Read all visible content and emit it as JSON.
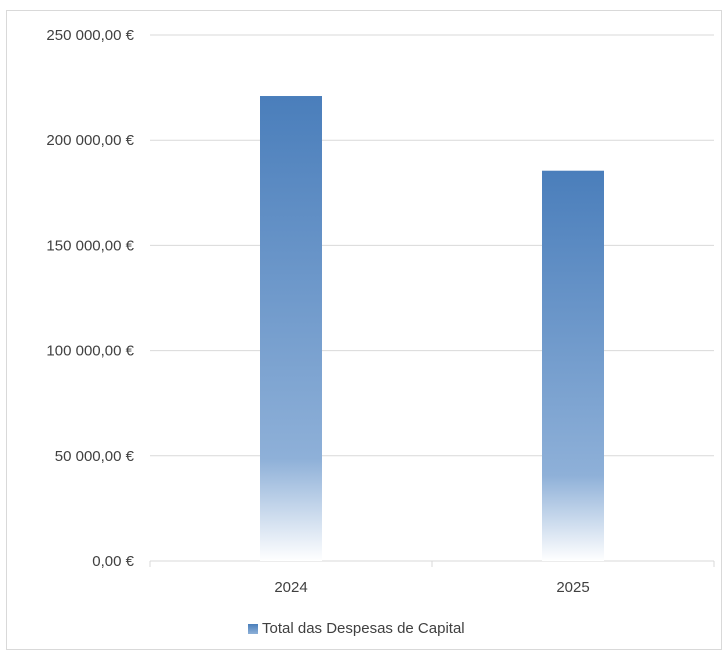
{
  "chart_data": {
    "type": "bar",
    "categories": [
      "2024",
      "2025"
    ],
    "series": [
      {
        "name": "Total das Despesas de Capital",
        "values": [
          221000,
          185500
        ]
      }
    ],
    "ylim": [
      0,
      250000
    ],
    "y_ticks": [
      0,
      50000,
      100000,
      150000,
      200000,
      250000
    ],
    "y_tick_labels": [
      "0,00 €",
      "50 000,00 €",
      "100 000,00 €",
      "150 000,00 €",
      "200 000,00 €",
      "250 000,00 €"
    ],
    "title": "",
    "xlabel": "",
    "ylabel": "",
    "grid": true,
    "legend_position": "bottom",
    "colors": {
      "bar_top": "#4a7ebb",
      "bar_bottom": "#ffffff",
      "grid": "#d9d9d9",
      "text": "#404040"
    }
  }
}
